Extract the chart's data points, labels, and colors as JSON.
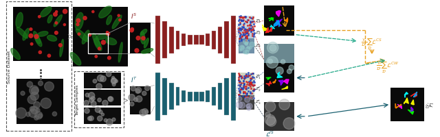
{
  "fig_width": 6.4,
  "fig_height": 2.01,
  "dpi": 100,
  "bg_color": "#ffffff",
  "source_color": "#8B2020",
  "target_color": "#1a6070",
  "orange_color": "#e8a020",
  "teal_color": "#20a888",
  "gray_color": "#888888"
}
